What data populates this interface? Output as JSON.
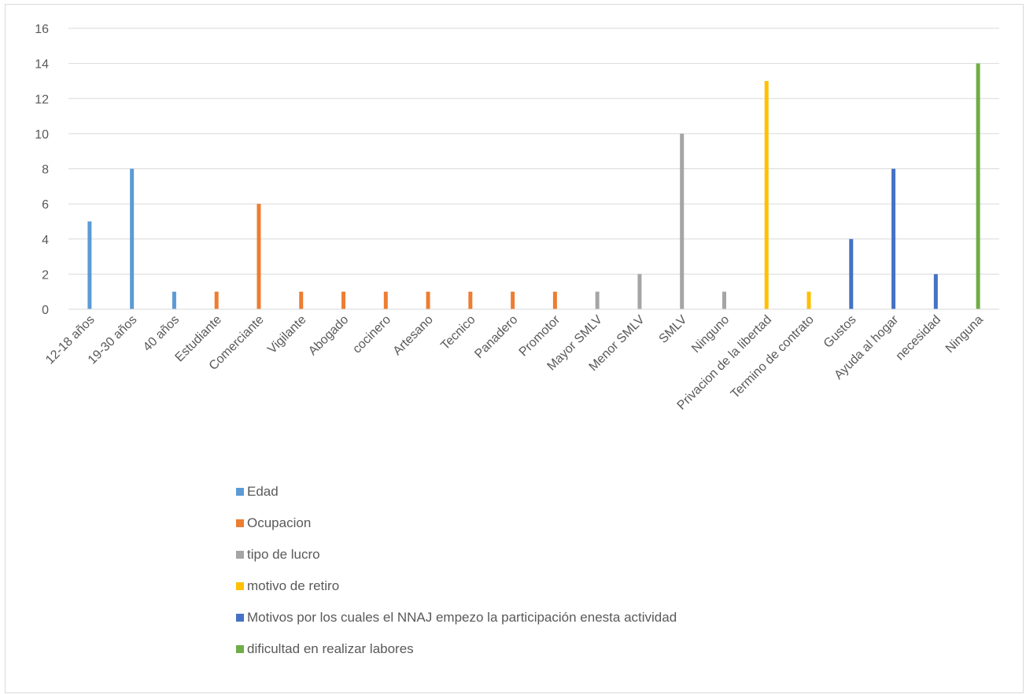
{
  "chart_data": {
    "type": "bar",
    "title": "",
    "xlabel": "",
    "ylabel": "",
    "ylim": [
      0,
      16
    ],
    "yticks": [
      0,
      2,
      4,
      6,
      8,
      10,
      12,
      14,
      16
    ],
    "grid": true,
    "legend_position": "bottom",
    "categories": [
      "12-18 años",
      "19-30 años",
      "40 años",
      "Estudiante",
      "Comerciante",
      "Vigilante",
      "Abogado",
      "cocinero",
      "Artesano",
      "Tecnico",
      "Panadero",
      "Promotor",
      "Mayor  SMLV",
      "Menor SMLV",
      "SMLV",
      "Ninguno",
      "Privacion de la libertad",
      "Termino de contrato",
      "Gustos",
      "Ayuda al hogar",
      "necesidad",
      "Ninguna"
    ],
    "series": [
      {
        "name": "Edad",
        "color": "#5B9BD5",
        "values": [
          5,
          8,
          1,
          null,
          null,
          null,
          null,
          null,
          null,
          null,
          null,
          null,
          null,
          null,
          null,
          null,
          null,
          null,
          null,
          null,
          null,
          null
        ]
      },
      {
        "name": "Ocupacion",
        "color": "#ED7D31",
        "values": [
          null,
          null,
          null,
          1,
          6,
          1,
          1,
          1,
          1,
          1,
          1,
          1,
          null,
          null,
          null,
          null,
          null,
          null,
          null,
          null,
          null,
          null
        ]
      },
      {
        "name": "tipo de lucro",
        "color": "#A5A5A5",
        "values": [
          null,
          null,
          null,
          null,
          null,
          null,
          null,
          null,
          null,
          null,
          null,
          null,
          1,
          2,
          10,
          1,
          null,
          null,
          null,
          null,
          null,
          null
        ]
      },
      {
        "name": "motivo de retiro",
        "color": "#FFC000",
        "values": [
          null,
          null,
          null,
          null,
          null,
          null,
          null,
          null,
          null,
          null,
          null,
          null,
          null,
          null,
          null,
          null,
          13,
          1,
          null,
          null,
          null,
          null
        ]
      },
      {
        "name": "Motivos por los cuales el NNAJ empezo la participación enesta actividad",
        "color": "#4472C4",
        "values": [
          null,
          null,
          null,
          null,
          null,
          null,
          null,
          null,
          null,
          null,
          null,
          null,
          null,
          null,
          null,
          null,
          null,
          null,
          4,
          8,
          2,
          null
        ]
      },
      {
        "name": "dificultad en realizar labores",
        "color": "#70AD47",
        "values": [
          null,
          null,
          null,
          null,
          null,
          null,
          null,
          null,
          null,
          null,
          null,
          null,
          null,
          null,
          null,
          null,
          null,
          null,
          null,
          null,
          null,
          14
        ]
      }
    ]
  },
  "colors": {
    "gridline": "#d9d9d9",
    "axis": "#d9d9d9",
    "text": "#595959"
  }
}
